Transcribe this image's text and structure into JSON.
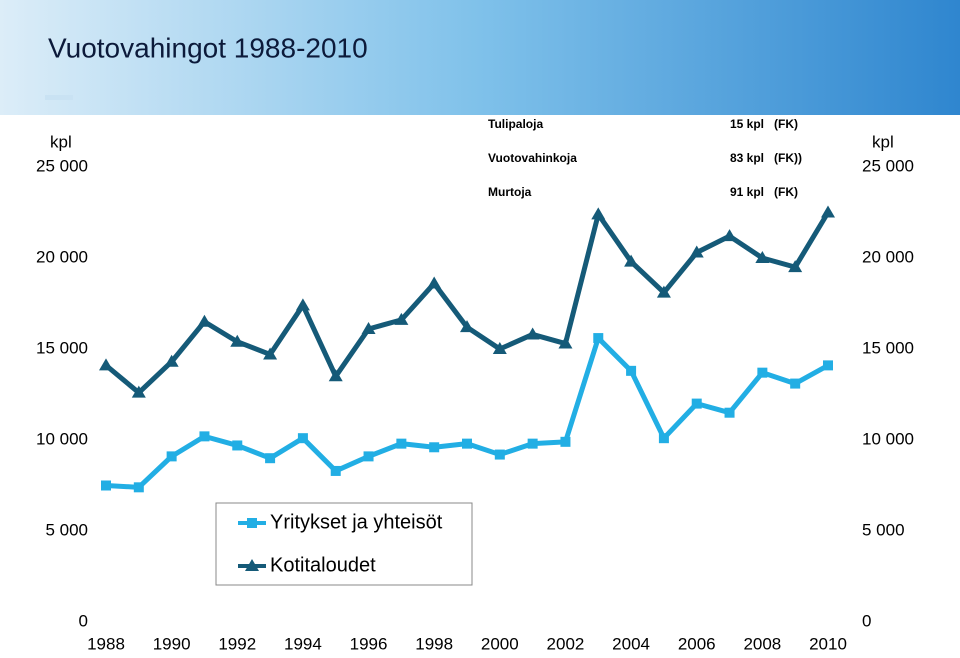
{
  "chart_data": {
    "type": "line",
    "title": "Vuotovahingot 1988-2010",
    "y_label": "kpl",
    "y2_label": "kpl",
    "annotations": [
      [
        "Tulipaloja",
        "15 kpl   (FK)"
      ],
      [
        "Vuotovahinkoja",
        "83 kpl   (FK))"
      ],
      [
        "Murtoja",
        "91 kpl   (FK)"
      ]
    ],
    "x": [
      1988,
      1989,
      1990,
      1991,
      1992,
      1993,
      1994,
      1995,
      1996,
      1997,
      1998,
      1999,
      2000,
      2001,
      2002,
      2003,
      2004,
      2005,
      2006,
      2007,
      2008,
      2009,
      2010
    ],
    "xlim": [
      1988,
      2010
    ],
    "xticks": [
      1988,
      1990,
      1992,
      1994,
      1996,
      1998,
      2000,
      2002,
      2004,
      2006,
      2008,
      2010
    ],
    "ylim": [
      0,
      25000
    ],
    "yticks": [
      0,
      {
        "value": 5000,
        "label": "5 000"
      },
      {
        "value": 10000,
        "label": "10 000"
      },
      {
        "value": 15000,
        "label": "15 000"
      },
      {
        "value": 20000,
        "label": "20 000"
      },
      {
        "value": 25000,
        "label": "25 000"
      }
    ],
    "y2lim": [
      0,
      25000
    ],
    "y2ticks": [
      0,
      {
        "value": 5000,
        "label": "5 000"
      },
      {
        "value": 10000,
        "label": "10 000"
      },
      {
        "value": 15000,
        "label": "15 000"
      },
      {
        "value": 20000,
        "label": "20 000"
      },
      {
        "value": 25000,
        "label": "25 000"
      }
    ],
    "series": [
      {
        "name": "Yritykset ja yhteisöt",
        "color": "#22aee4",
        "marker": "square",
        "values": [
          7500,
          7400,
          9100,
          10200,
          9700,
          9000,
          10100,
          8300,
          9100,
          9800,
          9600,
          9800,
          9200,
          9800,
          9900,
          15600,
          13800,
          10100,
          12000,
          11500,
          13700,
          13100,
          14100
        ]
      },
      {
        "name": "Kotitaloudet",
        "color": "#155a78",
        "marker": "triangle",
        "values": [
          14100,
          12600,
          14300,
          16500,
          15400,
          14700,
          17400,
          13500,
          16100,
          16600,
          18600,
          16200,
          15000,
          15800,
          15300,
          22400,
          19800,
          18100,
          20300,
          21200,
          20000,
          19500,
          22500
        ]
      }
    ],
    "grid": false,
    "legend": "bottom-left"
  }
}
